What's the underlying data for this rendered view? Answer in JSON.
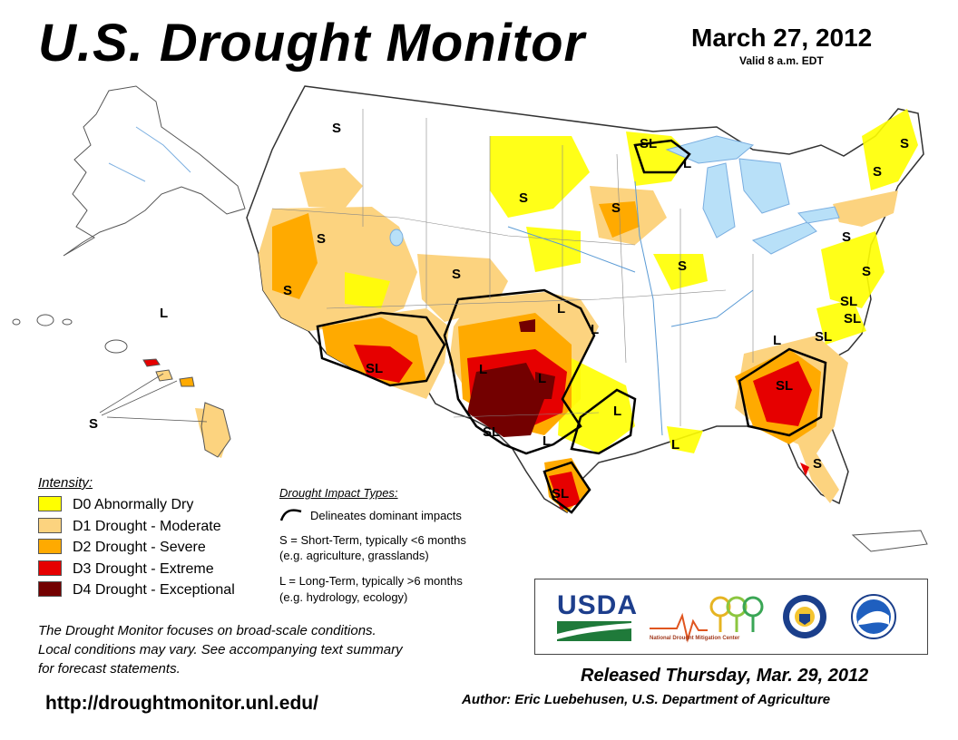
{
  "header": {
    "title": "U.S. Drought Monitor",
    "date": "March 27, 2012",
    "valid": "Valid 8 a.m. EDT"
  },
  "colors": {
    "D0": "#ffff00",
    "D1": "#fcd37f",
    "D2": "#ffaa00",
    "D3": "#e60000",
    "D4": "#730000",
    "water": "#b8e0f8",
    "land": "#ffffff",
    "border": "#555555"
  },
  "legend": {
    "heading": "Intensity:",
    "items": [
      {
        "code": "D0",
        "label": "D0 Abnormally Dry",
        "color": "#ffff00"
      },
      {
        "code": "D1",
        "label": "D1 Drought - Moderate",
        "color": "#fcd37f"
      },
      {
        "code": "D2",
        "label": "D2 Drought - Severe",
        "color": "#ffaa00"
      },
      {
        "code": "D3",
        "label": "D3 Drought - Extreme",
        "color": "#e60000"
      },
      {
        "code": "D4",
        "label": "D4 Drought - Exceptional",
        "color": "#730000"
      }
    ]
  },
  "impacts": {
    "heading": "Drought Impact Types:",
    "delineates": "Delineates dominant impacts",
    "short_term": "S = Short-Term, typically <6 months",
    "short_term_example": "(e.g. agriculture, grasslands)",
    "long_term": "L = Long-Term, typically >6 months",
    "long_term_example": "(e.g. hydrology, ecology)"
  },
  "map_labels": {
    "s": "S",
    "l": "L",
    "sl": "SL"
  },
  "footnote": {
    "line1": "The Drought Monitor focuses on broad-scale conditions.",
    "line2": "Local conditions may vary. See accompanying text summary",
    "line3": "for forecast statements."
  },
  "url": "http://droughtmonitor.unl.edu/",
  "released": "Released Thursday, Mar. 29, 2012",
  "author": "Author: Eric Luebehusen, U.S. Department of Agriculture",
  "logos": {
    "usda": "USDA",
    "ndmc": "National Drought Mitigation Center"
  }
}
